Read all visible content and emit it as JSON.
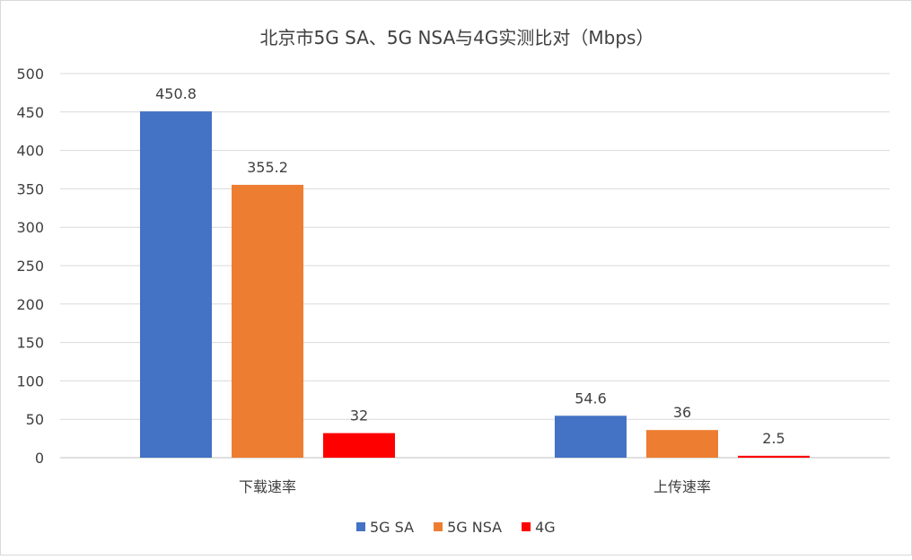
{
  "chart_data": {
    "type": "bar",
    "title": "北京市5G SA、5G NSA与4G实测比对（Mbps）",
    "categories": [
      "下载速率",
      "上传速率"
    ],
    "series": [
      {
        "name": "5G SA",
        "values": [
          450.8,
          54.6
        ],
        "labels": [
          "450.8",
          "54.6"
        ],
        "color": "#4472C4"
      },
      {
        "name": "5G NSA",
        "values": [
          355.2,
          36
        ],
        "labels": [
          "355.2",
          "36"
        ],
        "color": "#ED7D31"
      },
      {
        "name": "4G",
        "values": [
          32,
          2.5
        ],
        "labels": [
          "32",
          "2.5"
        ],
        "color": "#FF0000"
      }
    ],
    "ylim": [
      0,
      500
    ],
    "yticks": [
      "0",
      "50",
      "100",
      "150",
      "200",
      "250",
      "300",
      "350",
      "400",
      "450",
      "500"
    ],
    "grid": true,
    "legend_position": "bottom"
  }
}
